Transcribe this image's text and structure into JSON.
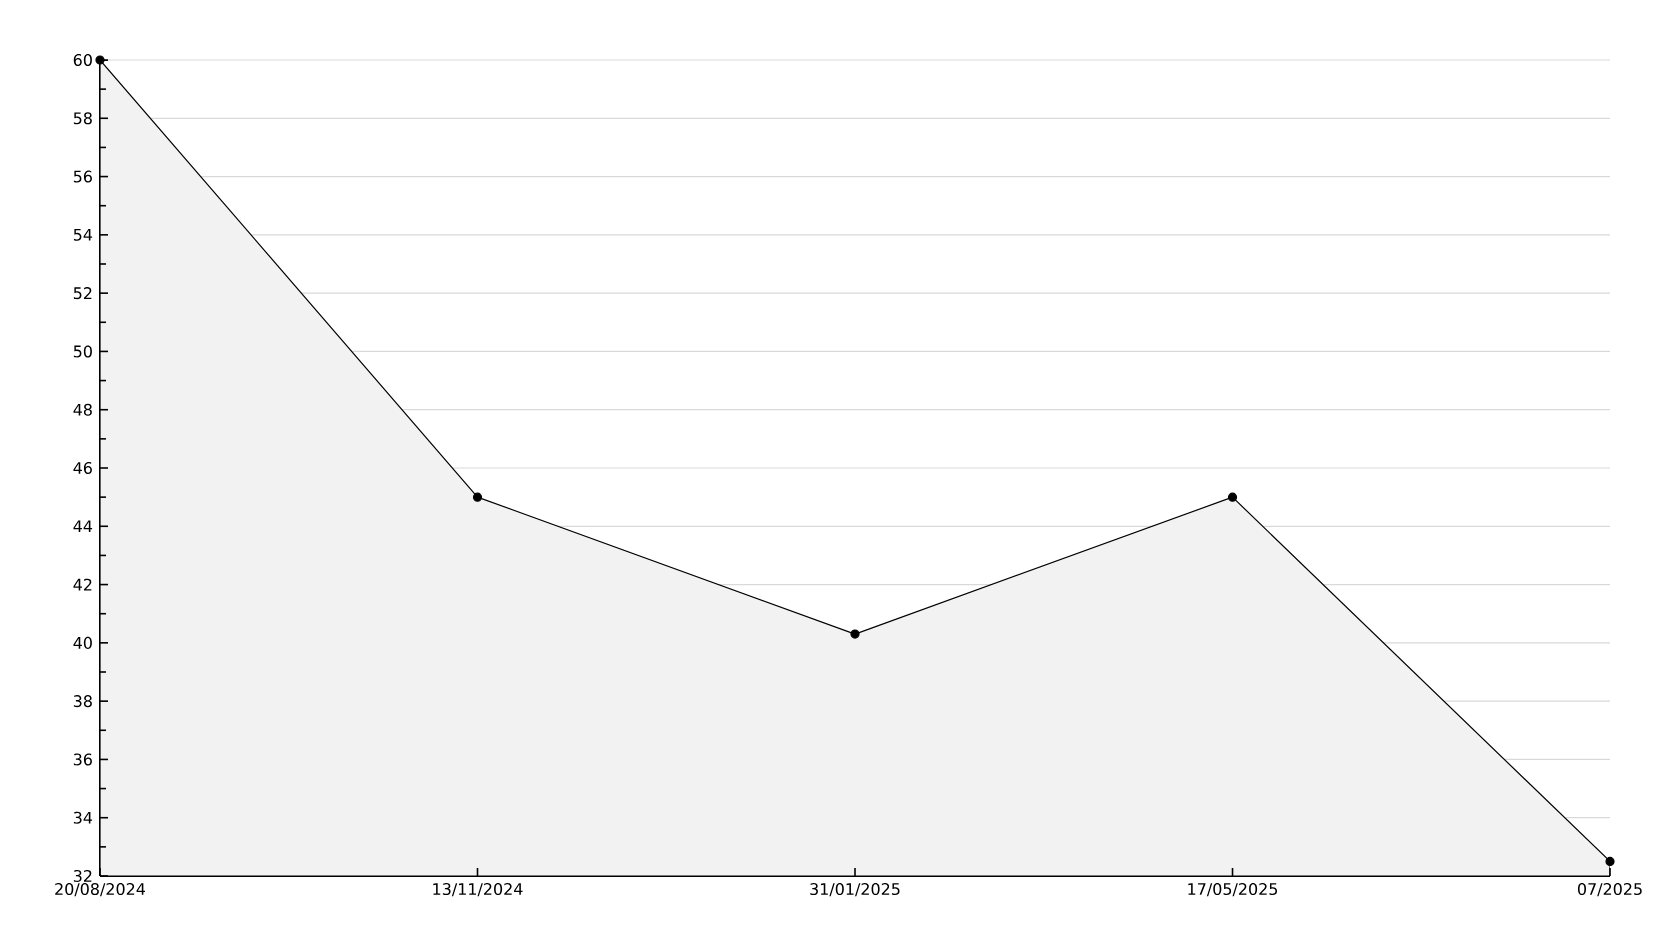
{
  "chart_data": {
    "type": "area",
    "categories": [
      "20/08/2024",
      "13/11/2024",
      "31/01/2025",
      "17/05/2025",
      "07/2025"
    ],
    "values": [
      60,
      45,
      40.3,
      45,
      32.5
    ],
    "color": "#f2f2f2",
    "ylim": [
      32,
      60
    ],
    "yticks": [
      32,
      {
        "value": 33,
        "label": null
      },
      34,
      {
        "value": 35,
        "label": null
      },
      36,
      {
        "value": 37,
        "label": null
      },
      38,
      {
        "value": 39,
        "label": null
      },
      40,
      {
        "value": 41,
        "label": null
      },
      42,
      {
        "value": 43,
        "label": null
      },
      44,
      {
        "value": 45,
        "label": null
      },
      46,
      {
        "value": 47,
        "label": null
      },
      48,
      {
        "value": 49,
        "label": null
      },
      50,
      {
        "value": 51,
        "label": null
      },
      52,
      {
        "value": 53,
        "label": null
      },
      54,
      {
        "value": 55,
        "label": null
      },
      56,
      {
        "value": 57,
        "label": null
      },
      58,
      {
        "value": 59,
        "label": null
      },
      60
    ],
    "grid": "y",
    "marker": "circle",
    "line_style": "solid"
  }
}
